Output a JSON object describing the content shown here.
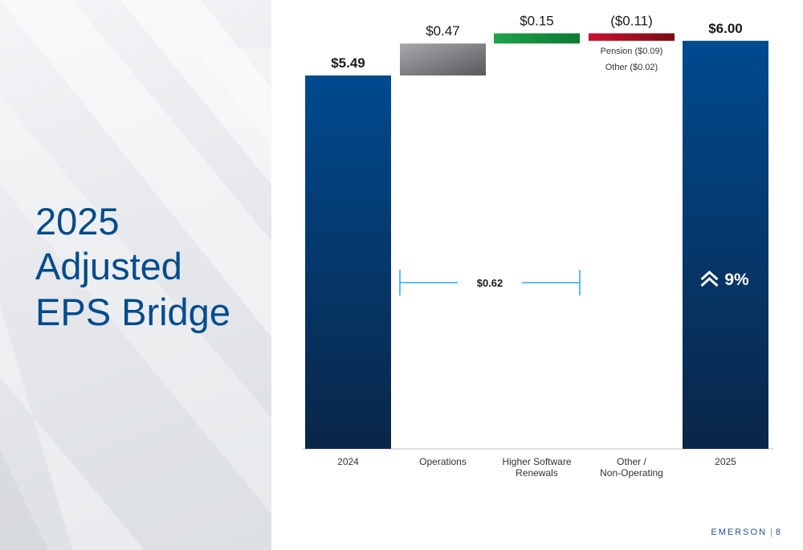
{
  "slide": {
    "title_lines": [
      "2025",
      "Adjusted",
      "EPS Bridge"
    ],
    "brand": "EMERSON",
    "page_number": "8"
  },
  "colors": {
    "title": "#004b8d",
    "bar_total_top": "#004a8f",
    "bar_total_bottom": "#0a2648",
    "operations_top": "#a7a9ac",
    "operations_bottom": "#58595b",
    "increase_top": "#1ea34a",
    "increase_bottom": "#0d7a33",
    "decrease_top": "#c8102e",
    "decrease_bottom": "#7a0a15",
    "bracket": "#29a9e1"
  },
  "chart_data": {
    "type": "bar",
    "subtype": "waterfall",
    "categories": [
      "2024",
      "Operations",
      "Higher Software\nRenewals",
      "Other /\nNon-Operating",
      "2025"
    ],
    "ylim": [
      0,
      6.6
    ],
    "bars": [
      {
        "kind": "total",
        "value": 5.49,
        "label": "$5.49"
      },
      {
        "kind": "delta",
        "value": 0.47,
        "label": "$0.47",
        "color": "gray"
      },
      {
        "kind": "delta",
        "value": 0.15,
        "label": "$0.15",
        "color": "green"
      },
      {
        "kind": "delta",
        "value": -0.11,
        "label": "($0.11)",
        "color": "red",
        "notes": [
          "Pension ($0.09)",
          "Other ($0.02)"
        ]
      },
      {
        "kind": "total",
        "value": 6.0,
        "label": "$6.00",
        "badge": "9%"
      }
    ],
    "bracket": {
      "from_index": 1,
      "to_index": 2,
      "label": "$0.62"
    }
  }
}
